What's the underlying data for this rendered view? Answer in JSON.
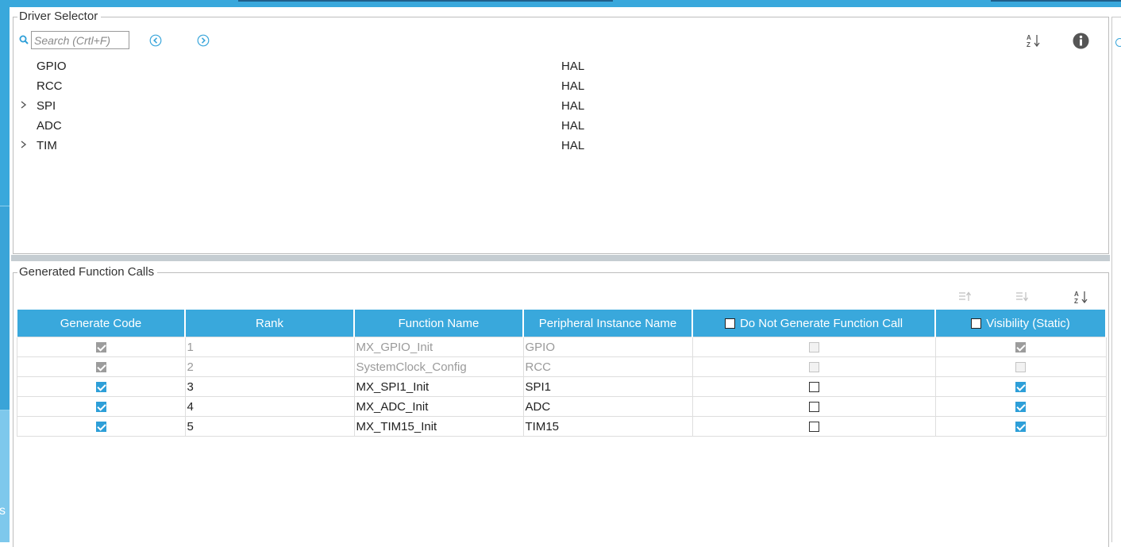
{
  "driver_selector": {
    "title": "Driver Selector",
    "search_placeholder": "Search (Crtl+F)",
    "drivers": [
      {
        "name": "GPIO",
        "library": "HAL",
        "expandable": false
      },
      {
        "name": "RCC",
        "library": "HAL",
        "expandable": false
      },
      {
        "name": "SPI",
        "library": "HAL",
        "expandable": true
      },
      {
        "name": "ADC",
        "library": "HAL",
        "expandable": false
      },
      {
        "name": "TIM",
        "library": "HAL",
        "expandable": true
      }
    ]
  },
  "generated_function_calls": {
    "title": "Generated Function Calls",
    "columns": [
      "Generate Code",
      "Rank",
      "Function Name",
      "Peripheral Instance Name",
      "Do Not Generate Function Call",
      "Visibility (Static)"
    ],
    "rows": [
      {
        "generate": true,
        "rank": "1",
        "function": "MX_GPIO_Init",
        "instance": "GPIO",
        "do_not_generate": false,
        "visibility": true,
        "disabled": true
      },
      {
        "generate": true,
        "rank": "2",
        "function": "SystemClock_Config",
        "instance": "RCC",
        "do_not_generate": false,
        "visibility": false,
        "disabled": true
      },
      {
        "generate": true,
        "rank": "3",
        "function": "MX_SPI1_Init",
        "instance": "SPI1",
        "do_not_generate": false,
        "visibility": true,
        "disabled": false
      },
      {
        "generate": true,
        "rank": "4",
        "function": "MX_ADC_Init",
        "instance": "ADC",
        "do_not_generate": false,
        "visibility": true,
        "disabled": false
      },
      {
        "generate": true,
        "rank": "5",
        "function": "MX_TIM15_Init",
        "instance": "TIM15",
        "do_not_generate": false,
        "visibility": true,
        "disabled": false
      }
    ]
  },
  "left_strip_glyph": "s",
  "colors": {
    "accent": "#39a8dc",
    "header_text": "#ffffff",
    "disabled_text": "#9a9a9a"
  }
}
